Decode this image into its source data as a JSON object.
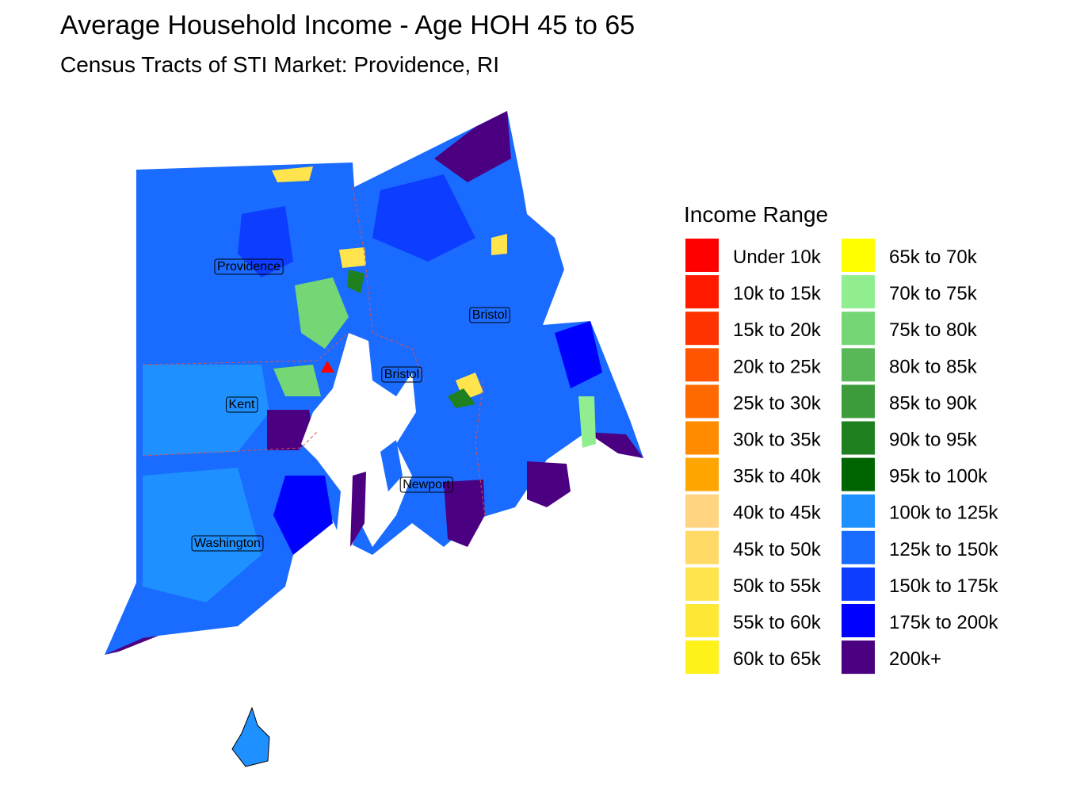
{
  "title": "Average Household Income - Age HOH 45 to 65",
  "subtitle": "Census Tracts of STI Market: Providence, RI",
  "legend": {
    "title": "Income Range",
    "items": [
      {
        "label": "Under 10k",
        "color": "#ff0000"
      },
      {
        "label": "10k to 15k",
        "color": "#ff1a00"
      },
      {
        "label": "15k to 20k",
        "color": "#ff3300"
      },
      {
        "label": "20k to 25k",
        "color": "#ff5500"
      },
      {
        "label": "25k to 30k",
        "color": "#ff6a00"
      },
      {
        "label": "30k to 35k",
        "color": "#ff8c00"
      },
      {
        "label": "35k to 40k",
        "color": "#ffa500"
      },
      {
        "label": "40k to 45k",
        "color": "#ffd37f"
      },
      {
        "label": "45k to 50k",
        "color": "#ffd966"
      },
      {
        "label": "50k to 55k",
        "color": "#ffe44d"
      },
      {
        "label": "55k to 60k",
        "color": "#ffe833"
      },
      {
        "label": "60k to 65k",
        "color": "#fff21a"
      },
      {
        "label": "65k to 70k",
        "color": "#ffff00"
      },
      {
        "label": "70k to 75k",
        "color": "#90ee90"
      },
      {
        "label": "75k to 80k",
        "color": "#74d674"
      },
      {
        "label": "80k to 85k",
        "color": "#58b858"
      },
      {
        "label": "85k to 90k",
        "color": "#3c9c3c"
      },
      {
        "label": "90k to 95k",
        "color": "#1f801f"
      },
      {
        "label": "95k to 100k",
        "color": "#006400"
      },
      {
        "label": "100k to 125k",
        "color": "#1e90ff"
      },
      {
        "label": "125k to 150k",
        "color": "#1a6bff"
      },
      {
        "label": "150k to 175k",
        "color": "#0d3dff"
      },
      {
        "label": "175k to 200k",
        "color": "#0000ff"
      },
      {
        "label": "200k+",
        "color": "#4b0082"
      }
    ]
  },
  "map_labels": [
    "Providence",
    "Bristol",
    "Bristol",
    "Kent",
    "Newport",
    "Washington"
  ]
}
